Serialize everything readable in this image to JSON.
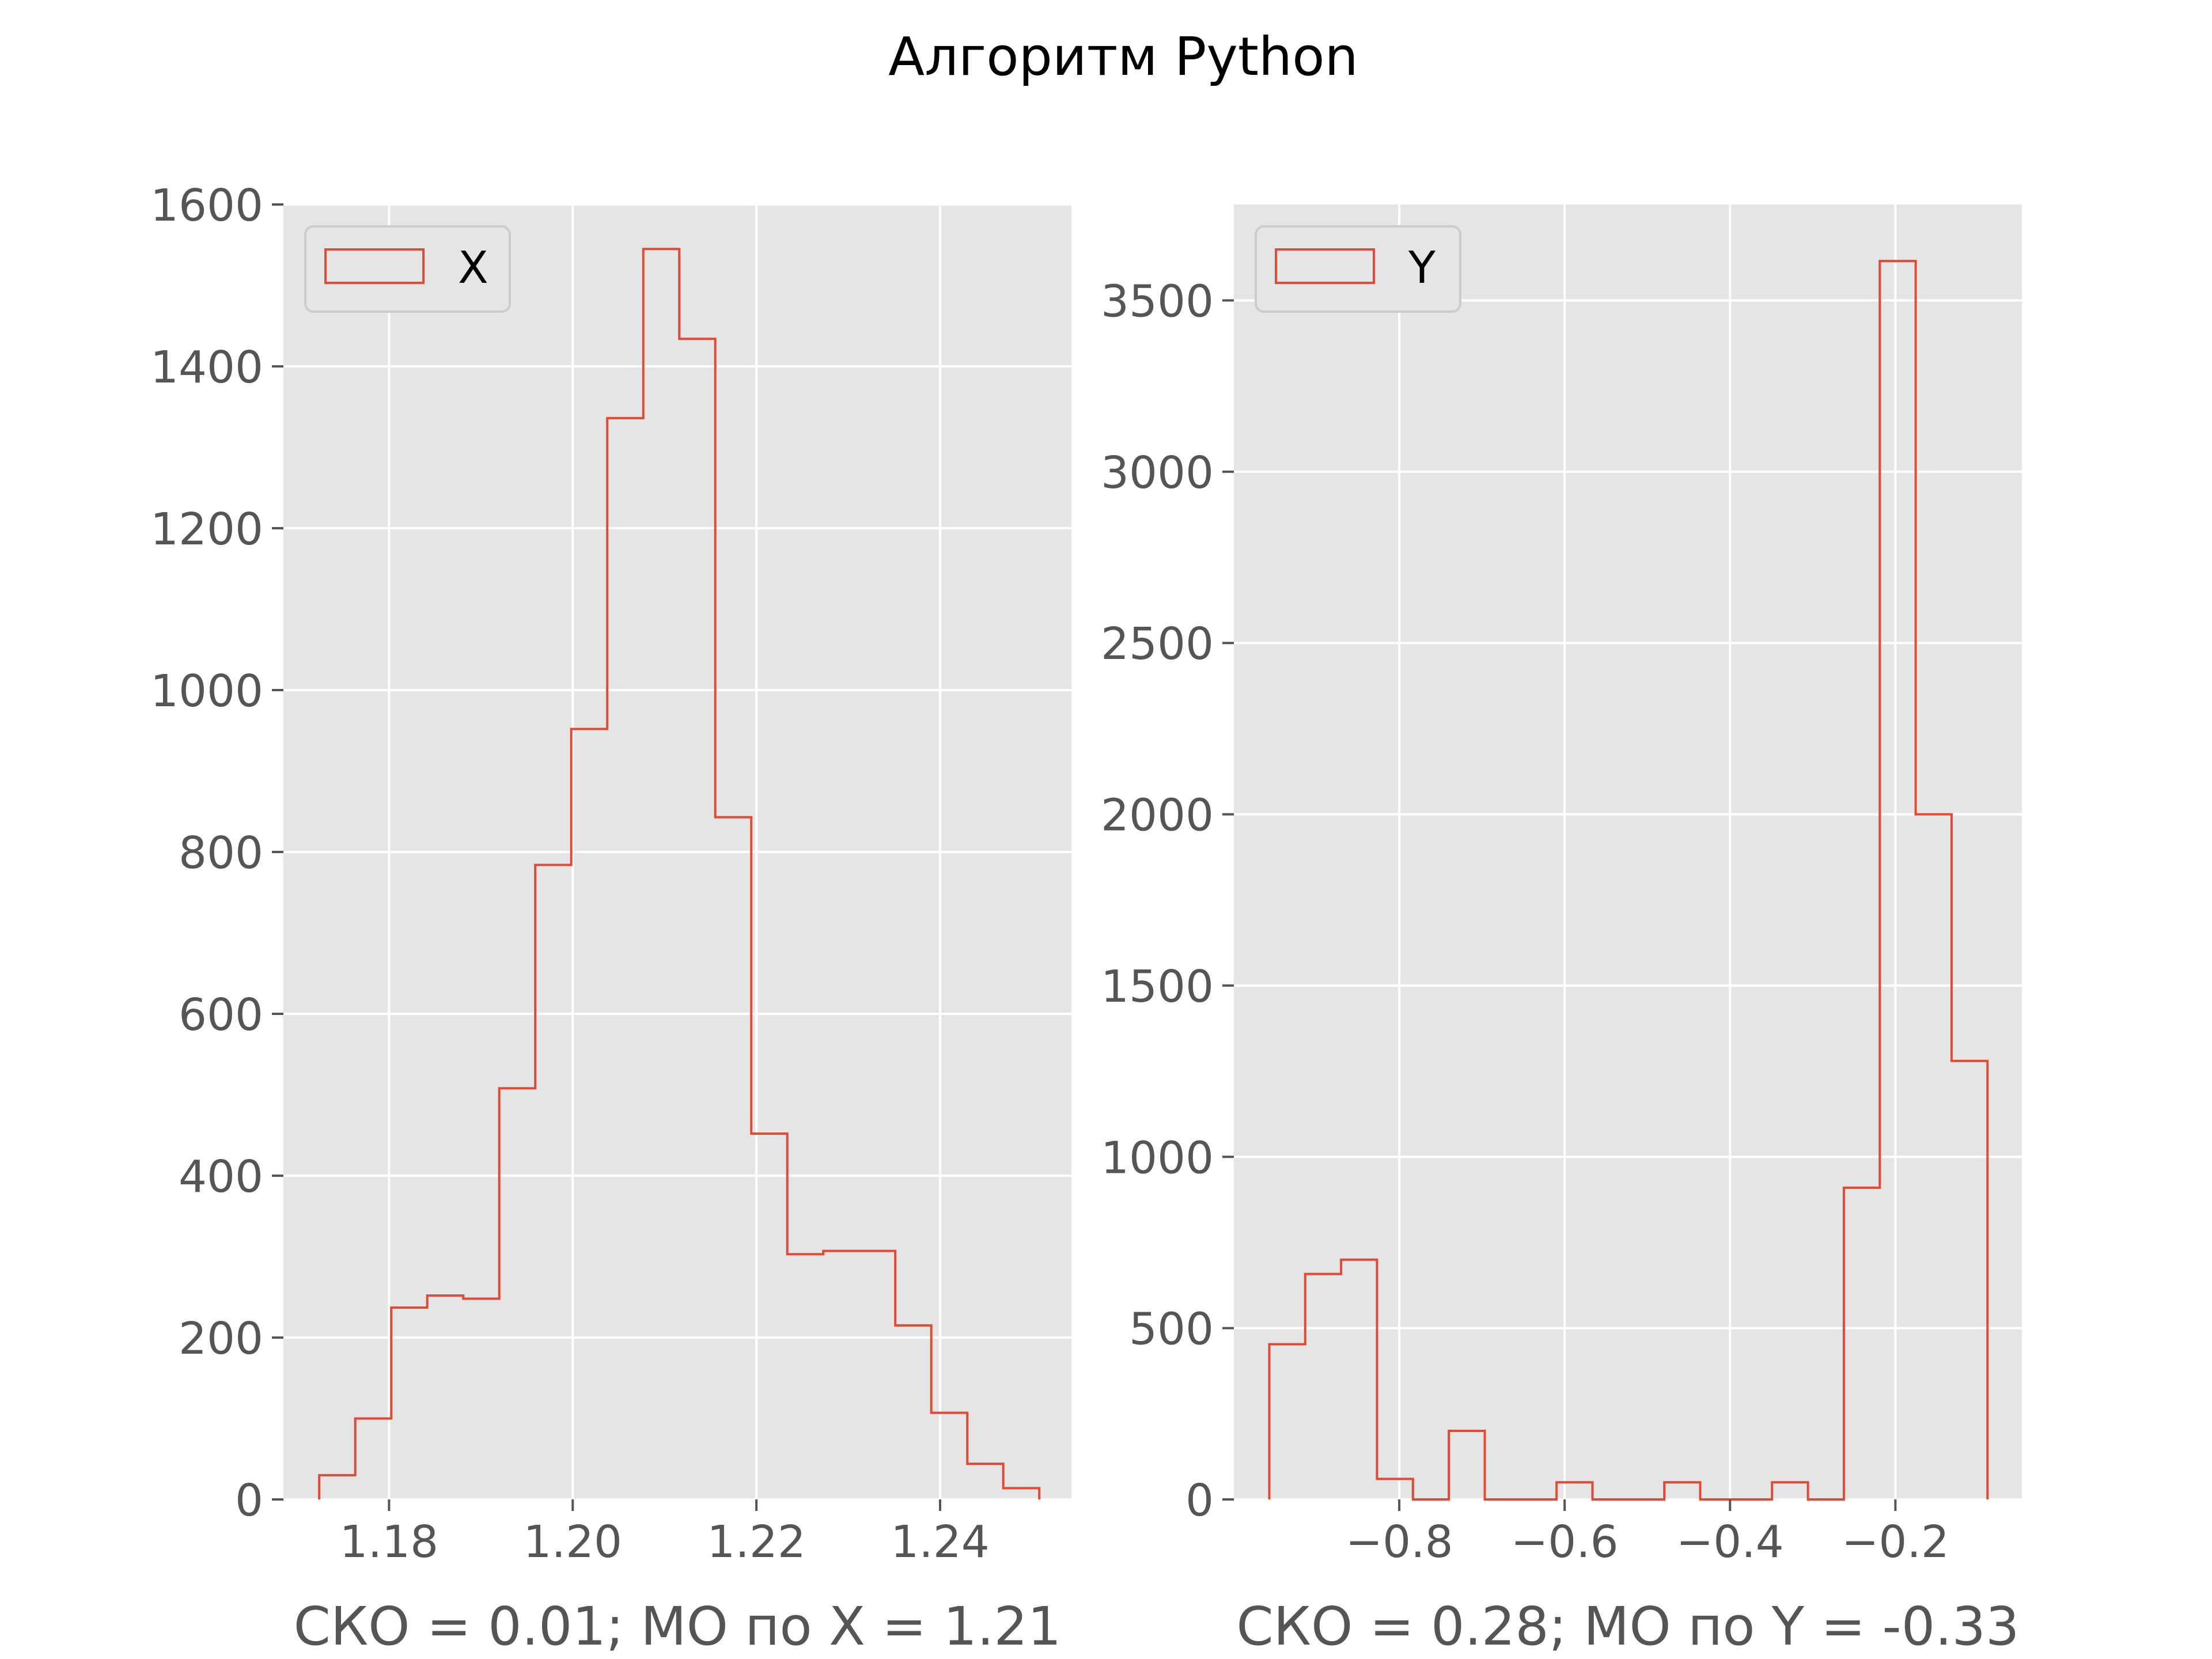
{
  "figure": {
    "title": "Алгоритм Python",
    "background": "#ffffff",
    "axes_bg": "#e5e5e5",
    "grid_color": "#ffffff",
    "hist_color": "#e24a33"
  },
  "chart_data": [
    {
      "type": "histogram",
      "histtype": "step",
      "legend": {
        "label": "X",
        "placement": "upper left"
      },
      "xlabel": "СКО = 0.01; МО по X = 1.21",
      "ylabel": "",
      "xlim": [
        1.1685,
        1.2543
      ],
      "ylim": [
        0,
        1600
      ],
      "xticks": [
        1.18,
        1.2,
        1.22,
        1.24
      ],
      "xtick_labels": [
        "1.18",
        "1.20",
        "1.22",
        "1.24"
      ],
      "yticks": [
        0,
        200,
        400,
        600,
        800,
        1000,
        1200,
        1400,
        1600
      ],
      "ytick_labels": [
        "0",
        "200",
        "400",
        "600",
        "800",
        "1000",
        "1200",
        "1400",
        "1600"
      ],
      "grid": true,
      "bin_start": 1.1724,
      "bin_width": 0.00392,
      "counts": [
        30,
        100,
        237,
        252,
        248,
        508,
        784,
        952,
        1336,
        1545,
        1434,
        843,
        452,
        303,
        307,
        307,
        215,
        107,
        44,
        14
      ]
    },
    {
      "type": "histogram",
      "histtype": "step",
      "legend": {
        "label": "Y",
        "placement": "upper left"
      },
      "xlabel": "СКО = 0.28; МО по Y = -0.33",
      "ylabel": "",
      "xlim": [
        -1.0,
        -0.047
      ],
      "ylim": [
        0,
        3780
      ],
      "xticks": [
        -0.8,
        -0.6,
        -0.4,
        -0.2
      ],
      "xtick_labels": [
        "−0.8",
        "−0.6",
        "−0.4",
        "−0.2"
      ],
      "yticks": [
        0,
        500,
        1000,
        1500,
        2000,
        2500,
        3000,
        3500
      ],
      "ytick_labels": [
        "0",
        "500",
        "1000",
        "1500",
        "2000",
        "2500",
        "3000",
        "3500"
      ],
      "grid": true,
      "bin_start": -0.9572,
      "bin_width": 0.04343,
      "counts": [
        453,
        658,
        700,
        60,
        0,
        200,
        0,
        0,
        50,
        0,
        0,
        50,
        0,
        0,
        50,
        0,
        910,
        3615,
        2000,
        1280
      ]
    }
  ]
}
